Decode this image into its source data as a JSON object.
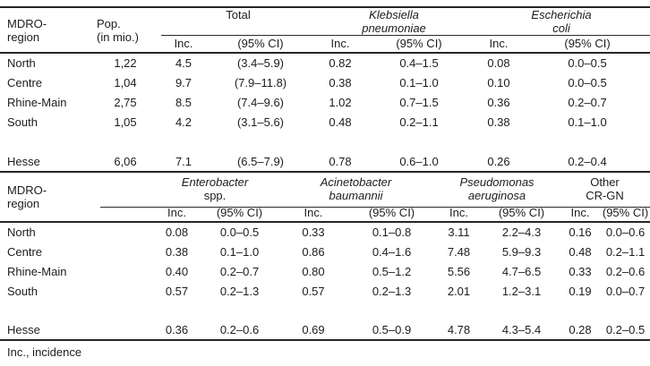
{
  "labels": {
    "inc": "Inc.",
    "ci": "(95% CI)"
  },
  "table1": {
    "col1_header": [
      "MDRO-",
      "region"
    ],
    "col2_header": [
      "Pop.",
      "(in mio.)"
    ],
    "groups": [
      {
        "line1": "Total"
      },
      {
        "line1": "Klebsiella",
        "line2": "pneumoniae"
      },
      {
        "line1": "Escherichia",
        "line2": "coli"
      }
    ],
    "rows": [
      [
        "North",
        "1,22",
        "4.5",
        "(3.4–5.9)",
        "0.82",
        "0.4–1.5",
        "0.08",
        "0.0–0.5"
      ],
      [
        "Centre",
        "1,04",
        "9.7",
        "(7.9–11.8)",
        "0.38",
        "0.1–1.0",
        "0.10",
        "0.0–0.5"
      ],
      [
        "Rhine-Main",
        "2,75",
        "8.5",
        "(7.4–9.6)",
        "1.02",
        "0.7–1.5",
        "0.36",
        "0.2–0.7"
      ],
      [
        "South",
        "1,05",
        "4.2",
        "(3.1–5.6)",
        "0.48",
        "0.2–1.1",
        "0.38",
        "0.1–1.0"
      ],
      [
        "",
        "",
        "",
        "",
        "",
        "",
        "",
        ""
      ],
      [
        "Hesse",
        "6,06",
        "7.1",
        "(6.5–7.9)",
        "0.78",
        "0.6–1.0",
        "0.26",
        "0.2–0.4"
      ]
    ]
  },
  "table2": {
    "col1_header": [
      "MDRO-",
      "region"
    ],
    "groups": [
      {
        "line1": "Enterobacter",
        "line2": "spp."
      },
      {
        "line1": "Acinetobacter",
        "line2": "baumannii"
      },
      {
        "line1": "Pseudomonas",
        "line2": "aeruginosa"
      },
      {
        "line1": "Other",
        "line2": "CR-GN"
      }
    ],
    "rows": [
      [
        "North",
        "0.08",
        "0.0–0.5",
        "0.33",
        "0.1–0.8",
        "3.11",
        "2.2–4.3",
        "0.16",
        "0.0–0.6"
      ],
      [
        "Centre",
        "0.38",
        "0.1–1.0",
        "0.86",
        "0.4–1.6",
        "7.48",
        "5.9–9.3",
        "0.48",
        "0.2–1.1"
      ],
      [
        "Rhine-Main",
        "0.40",
        "0.2–0.7",
        "0.80",
        "0.5–1.2",
        "5.56",
        "4.7–6.5",
        "0.33",
        "0.2–0.6"
      ],
      [
        "South",
        "0.57",
        "0.2–1.3",
        "0.57",
        "0.2–1.3",
        "2.01",
        "1.2–3.1",
        "0.19",
        "0.0–0.7"
      ],
      [
        "",
        "",
        "",
        "",
        "",
        "",
        "",
        "",
        ""
      ],
      [
        "Hesse",
        "0.36",
        "0.2–0.6",
        "0.69",
        "0.5–0.9",
        "4.78",
        "4.3–5.4",
        "0.28",
        "0.2–0.5"
      ]
    ]
  },
  "footer": {
    "note": "Inc., incidence"
  }
}
